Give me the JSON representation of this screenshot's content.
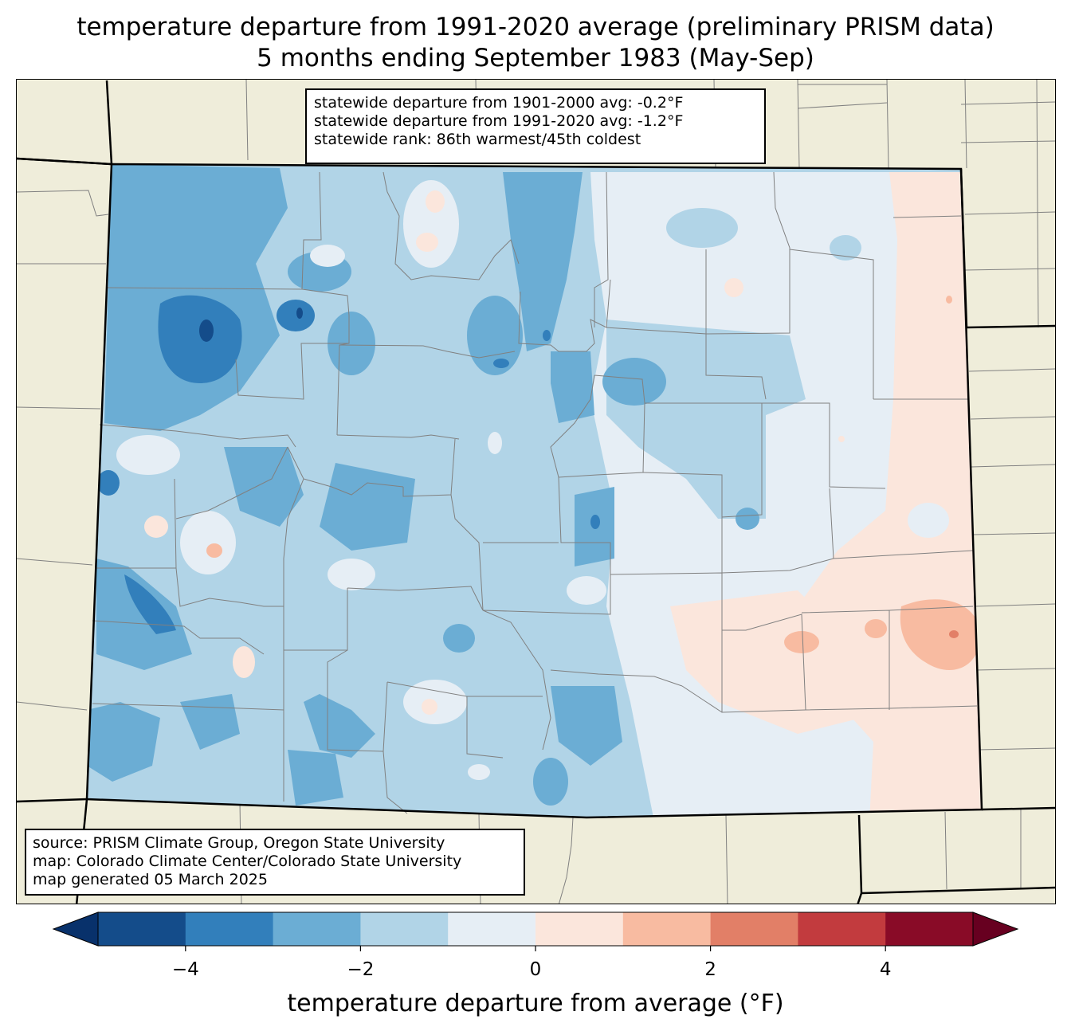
{
  "title": {
    "line1": "temperature departure from 1991-2020 average (preliminary PRISM data)",
    "line2": "5 months ending September 1983 (May-Sep)"
  },
  "stats": {
    "line1": "statewide departure from 1901-2000 avg: -0.2°F",
    "line2": "statewide departure from 1991-2020 avg: -1.2°F",
    "line3": "statewide rank: 86th warmest/45th coldest"
  },
  "source": {
    "line1": "source: PRISM Climate Group, Oregon State University",
    "line2": "map: Colorado Climate Center/Colorado State University",
    "line3": "map generated 05 March 2025"
  },
  "colorbar": {
    "label": "temperature departure from average (°F)",
    "ticks": [
      "−4",
      "−2",
      "0",
      "2",
      "4"
    ],
    "bins": [
      {
        "from": -5,
        "to": -4,
        "color": "#144c8a"
      },
      {
        "from": -4,
        "to": -3,
        "color": "#327fbb"
      },
      {
        "from": -3,
        "to": -2,
        "color": "#6badd4"
      },
      {
        "from": -2,
        "to": -1,
        "color": "#b1d4e7"
      },
      {
        "from": -1,
        "to": 0,
        "color": "#e6eef5"
      },
      {
        "from": 0,
        "to": 1,
        "color": "#fbe6dc"
      },
      {
        "from": 1,
        "to": 2,
        "color": "#f8bba1"
      },
      {
        "from": 2,
        "to": 3,
        "color": "#e27f67"
      },
      {
        "from": 3,
        "to": 4,
        "color": "#c23b3e"
      },
      {
        "from": 4,
        "to": 5,
        "color": "#890b27"
      }
    ],
    "under_color": "#08316b",
    "over_color": "#670020"
  },
  "colors": {
    "land": "#efedda",
    "county_lines": "#808080",
    "state_lines": "#000000"
  }
}
